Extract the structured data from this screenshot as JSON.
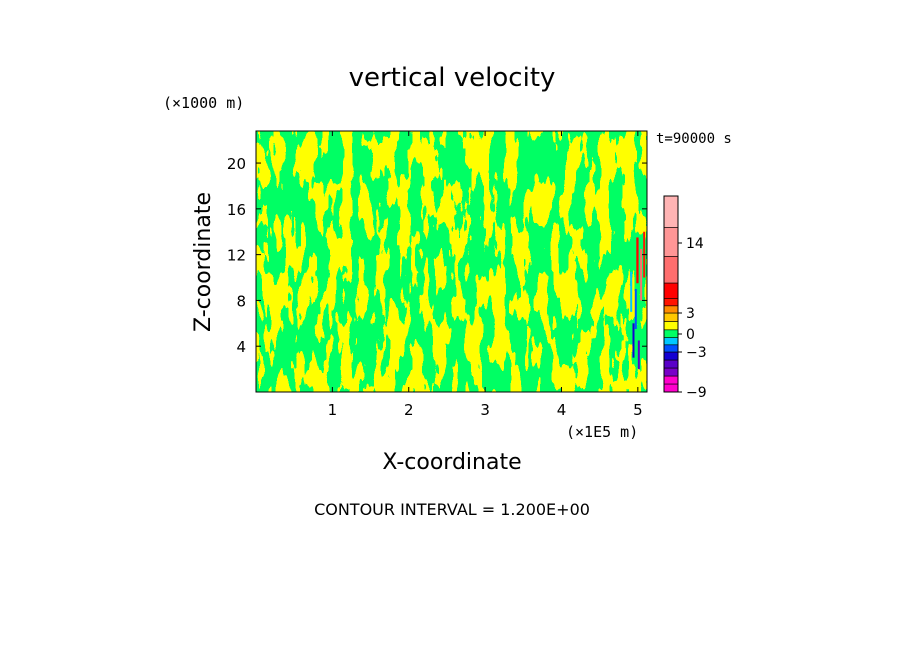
{
  "chart_data": {
    "type": "heatmap",
    "title": "vertical velocity",
    "xlabel": "X-coordinate",
    "ylabel": "Z-coordinate",
    "x_unit": "(×1E5 m)",
    "y_unit": "(×1000 m)",
    "xlim": [
      0,
      5.12
    ],
    "ylim": [
      0,
      22.8
    ],
    "x_ticks": [
      "1",
      "2",
      "3",
      "4",
      "5"
    ],
    "x_tick_values": [
      1,
      2,
      3,
      4,
      5
    ],
    "y_ticks": [
      "4",
      "8",
      "12",
      "16",
      "20"
    ],
    "y_tick_values": [
      4,
      8,
      12,
      16,
      20
    ],
    "time_label": "t=90000 s",
    "contour_interval": "CONTOUR INTERVAL = 1.200E+00",
    "colorbar": {
      "tick_labels": [
        "14",
        "3",
        "0",
        "−3",
        "−9"
      ],
      "tick_values": [
        14,
        3,
        0,
        -3,
        -9
      ],
      "range": [
        -9,
        20
      ],
      "levels": [
        {
          "from": -9,
          "to": -7.8,
          "color": "#ff00cc"
        },
        {
          "from": -7.8,
          "to": -6.6,
          "color": "#ff00cc"
        },
        {
          "from": -6.6,
          "to": -5.4,
          "color": "#7a00c8"
        },
        {
          "from": -5.4,
          "to": -4.2,
          "color": "#5a00c8"
        },
        {
          "from": -4.2,
          "to": -3.0,
          "color": "#1400d2"
        },
        {
          "from": -3.0,
          "to": -1.8,
          "color": "#0050ff"
        },
        {
          "from": -1.8,
          "to": -0.6,
          "color": "#00c8ff"
        },
        {
          "from": -0.6,
          "to": 0.6,
          "color": "#00ff64"
        },
        {
          "from": 0.6,
          "to": 1.8,
          "color": "#ffff00"
        },
        {
          "from": 1.8,
          "to": 3.0,
          "color": "#ffc800"
        },
        {
          "from": 3.0,
          "to": 4.2,
          "color": "#ff8c00"
        },
        {
          "from": 4.2,
          "to": 5.4,
          "color": "#ff1400"
        },
        {
          "from": 5.4,
          "to": 8.0,
          "color": "#ff0000"
        },
        {
          "from": 8.0,
          "to": 12.0,
          "color": "#ff6e6e"
        },
        {
          "from": 12.0,
          "to": 16.0,
          "color": "#ff9696"
        },
        {
          "from": 16.0,
          "to": 20.0,
          "color": "#ffb4b4"
        }
      ]
    },
    "field_colors": {
      "downdraft": "#00ff64",
      "updraft": "#ffff00"
    }
  }
}
